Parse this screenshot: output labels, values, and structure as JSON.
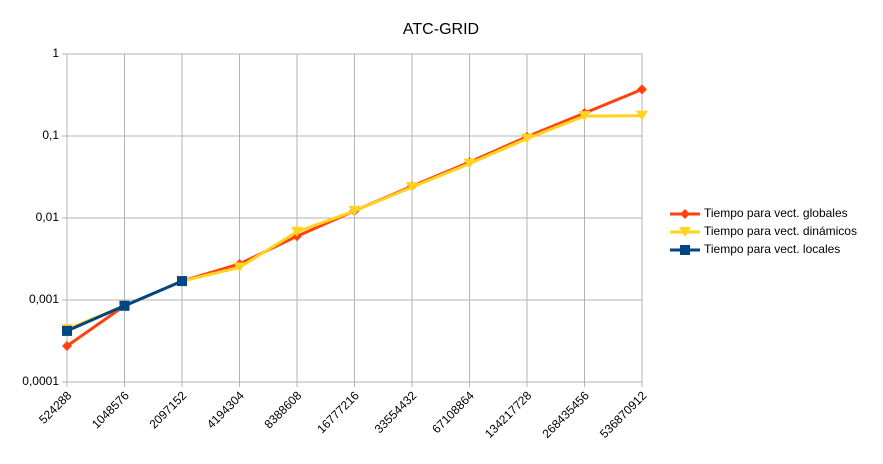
{
  "chart_data": {
    "type": "line",
    "title": "ATC-GRID",
    "categories": [
      "524288",
      "1048576",
      "2097152",
      "4194304",
      "8388608",
      "16777216",
      "33554432",
      "67108864",
      "134217728",
      "268435456",
      "536870912"
    ],
    "series": [
      {
        "name": "Tiempo para vect. globales",
        "color": "#ff420e",
        "marker": "diamond",
        "values": [
          0.000275,
          0.00085,
          0.0017,
          0.00275,
          0.006,
          0.0122,
          0.0245,
          0.048,
          0.098,
          0.19,
          0.37
        ]
      },
      {
        "name": "Tiempo para vect. dinámicos",
        "color": "#ffd320",
        "marker": "triangle",
        "values": [
          0.00044,
          0.00085,
          0.0017,
          0.0025,
          0.0068,
          0.0122,
          0.0238,
          0.046,
          0.093,
          0.175,
          0.177
        ]
      },
      {
        "name": "Tiempo para vect. locales",
        "color": "#004586",
        "marker": "square",
        "values": [
          0.00042,
          0.00085,
          0.0017,
          null,
          null,
          null,
          null,
          null,
          null,
          null,
          null
        ]
      }
    ],
    "ylim": [
      0.0001,
      1
    ],
    "log_y": true,
    "yticks": [
      {
        "value": 0.0001,
        "label": "0,0001"
      },
      {
        "value": 0.001,
        "label": "0,001"
      },
      {
        "value": 0.01,
        "label": "0,01"
      },
      {
        "value": 0.1,
        "label": "0,1"
      },
      1
    ],
    "grid": true,
    "legend": "right"
  }
}
